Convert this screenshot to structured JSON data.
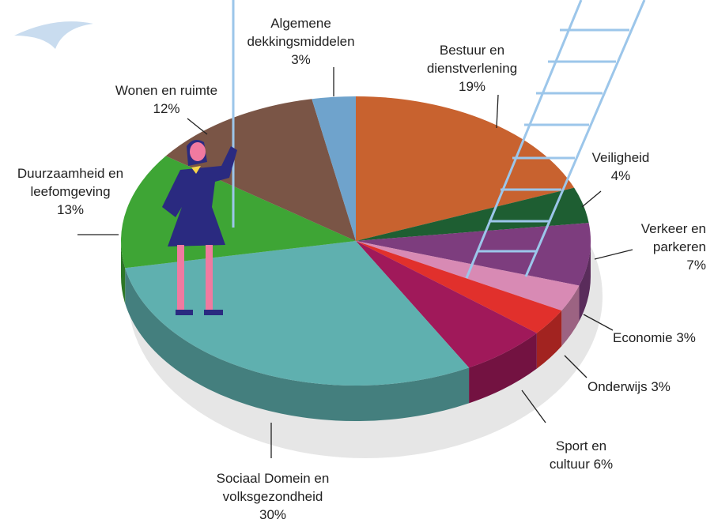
{
  "chart_data": {
    "type": "pie",
    "categories": [
      "Bestuur en dienstverlening",
      "Veiligheid",
      "Verkeer en parkeren",
      "Economie",
      "Onderwijs",
      "Sport en cultuur",
      "Sociaal Domein en volksgezondheid",
      "Duurzaamheid en leefomgeving",
      "Wonen en ruimte",
      "Algemene dekkingsmiddelen"
    ],
    "values": [
      19,
      4,
      7,
      3,
      3,
      6,
      30,
      13,
      12,
      3
    ],
    "value_labels": [
      "19%",
      "4%",
      "7%",
      "3%",
      "3%",
      "6%",
      "30%",
      "13%",
      "12%",
      "3%"
    ],
    "colors": [
      "#c8622f",
      "#1e5e32",
      "#7d3d7e",
      "#d88ab4",
      "#e1302c",
      "#a0195a",
      "#5fb0af",
      "#3ea535",
      "#7a5546",
      "#6fa3cc"
    ]
  }
}
